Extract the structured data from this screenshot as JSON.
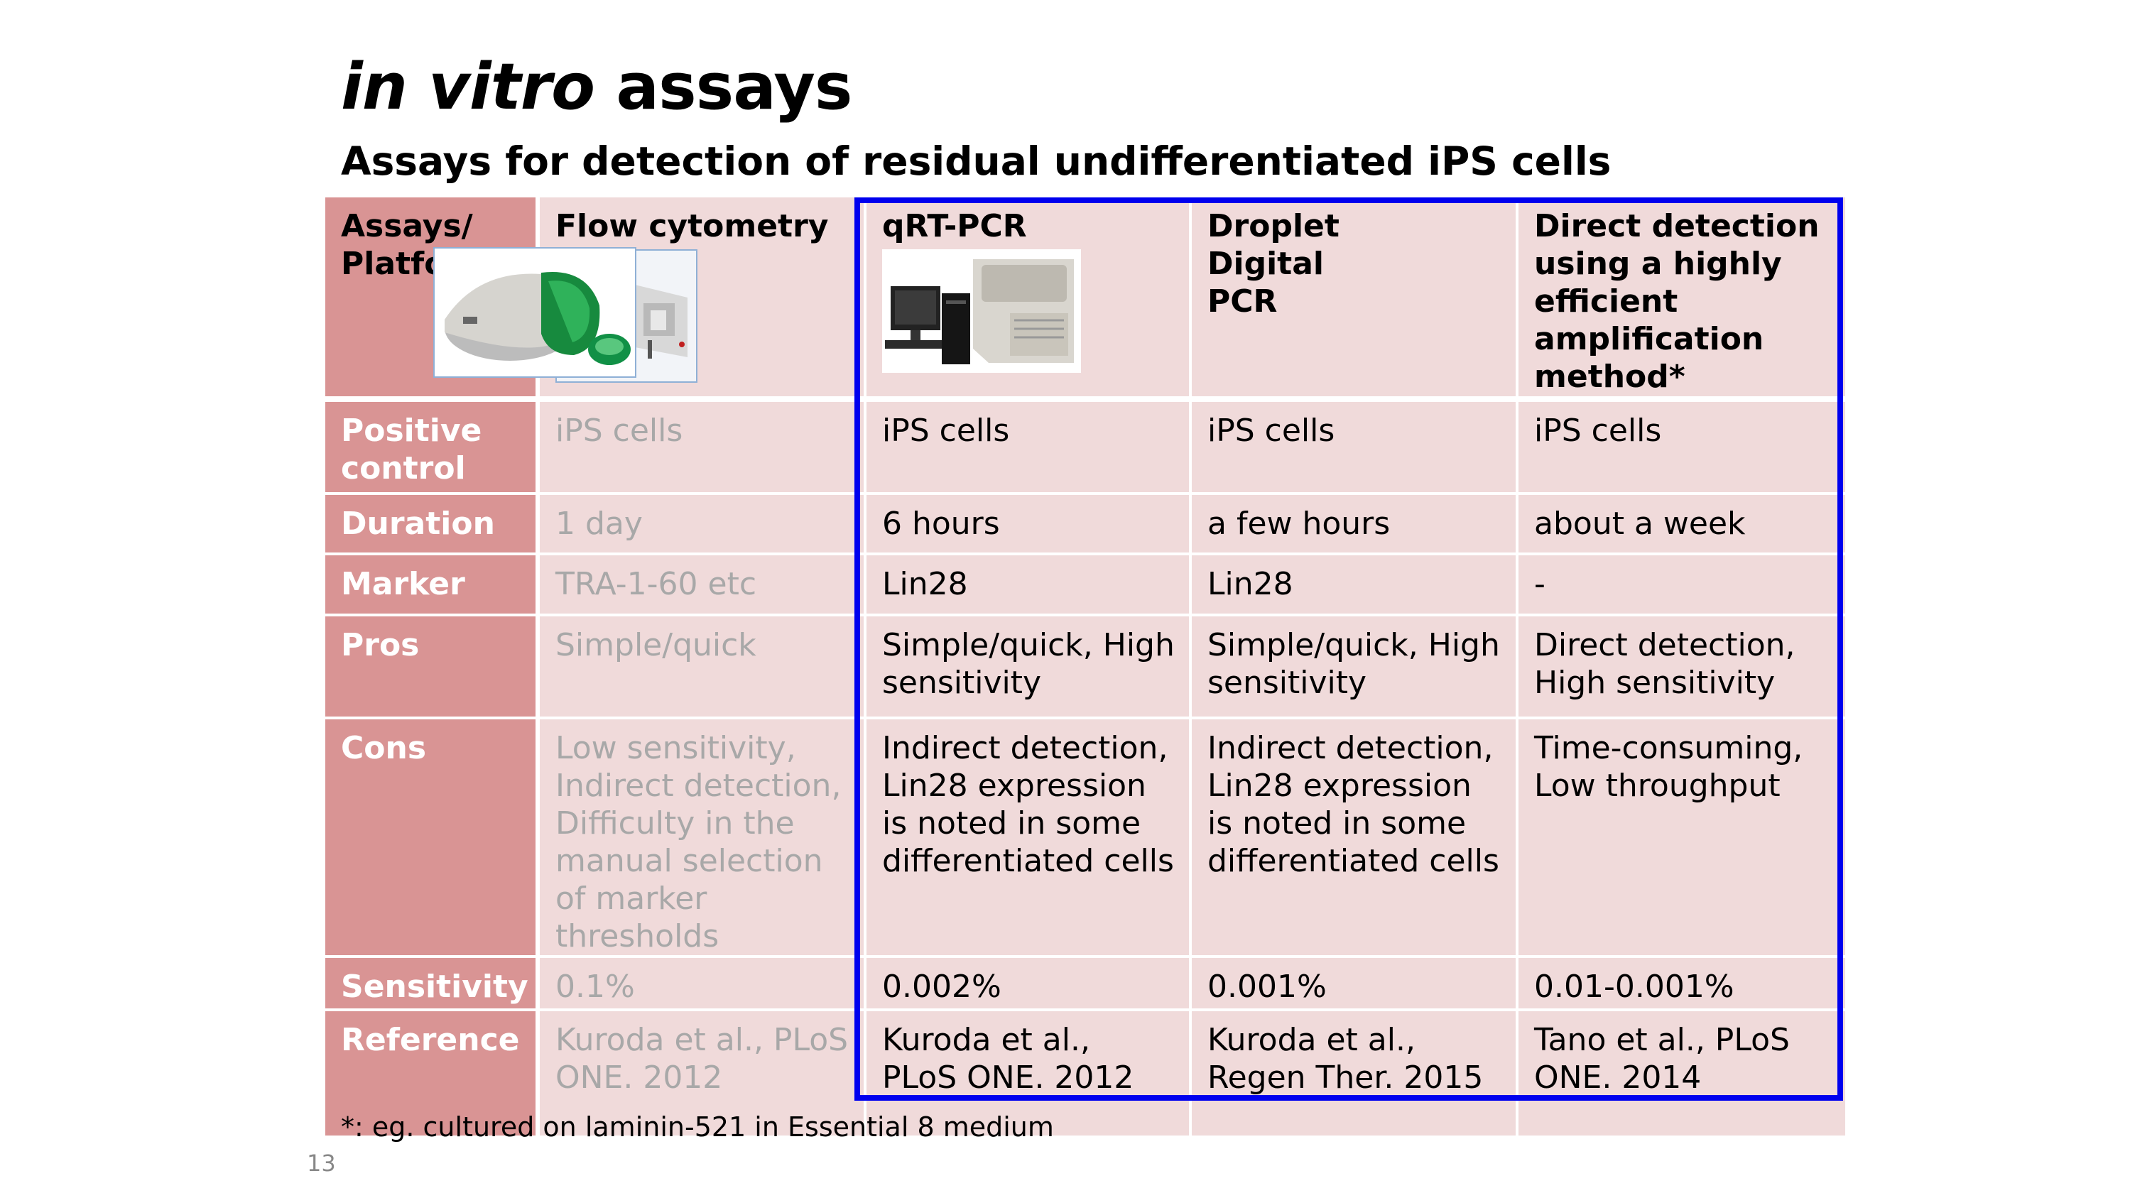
{
  "slide": {
    "title_italic": "in vitro",
    "title_rest": "assays",
    "subtitle": "Assays for detection of residual undifferentiated iPS cells",
    "footnote": "*: eg. cultured on laminin-521 in Essential 8 medium",
    "page_number": "13"
  },
  "table": {
    "header": {
      "row_label": "Assays/ Platform",
      "columns": [
        "Flow cytometry",
        "qRT-PCR",
        "Droplet Digital PCR",
        "Direct detection using a highly efficient amplification method*"
      ]
    },
    "rows": [
      {
        "label": "Positive control",
        "cells": [
          "iPS cells",
          "iPS cells",
          "iPS cells",
          "iPS cells"
        ]
      },
      {
        "label": "Duration",
        "cells": [
          "1 day",
          "6 hours",
          "a few hours",
          "about a week"
        ]
      },
      {
        "label": "Marker",
        "cells": [
          "TRA-1-60 etc",
          "Lin28",
          "Lin28",
          "-"
        ]
      },
      {
        "label": "Pros",
        "cells": [
          "Simple/quick",
          "Simple/quick, High sensitivity",
          "Simple/quick, High sensitivity",
          "Direct detection, High sensitivity"
        ]
      },
      {
        "label": "Cons",
        "cells": [
          "Low sensitivity, Indirect detection, Difficulty in the manual selection of marker thresholds",
          "Indirect detection, Lin28 expression is noted in some differentiated cells",
          "Indirect detection, Lin28 expression is noted in some differentiated cells",
          "Time-consuming, Low throughput"
        ]
      },
      {
        "label": "Sensitivity",
        "cells": [
          "0.1%",
          "0.002%",
          "0.001%",
          "0.01-0.001%"
        ]
      },
      {
        "label": "Reference",
        "cells": [
          "Kuroda et al., PLoS ONE. 2012",
          "Kuroda et al., PLoS ONE. 2012",
          "Kuroda et al., Regen Ther. 2015",
          "Tano et al., PLoS ONE. 2014"
        ]
      }
    ]
  },
  "colors": {
    "row_header_bg": "#d99494",
    "cell_bg": "#f0dada",
    "dimmed_text": "#a8a8a8",
    "highlight_border": "#0000ee"
  },
  "images": [
    "flow-cytometer-icon",
    "qpcr-instrument-icon",
    "droplet-digital-pcr-icon"
  ]
}
